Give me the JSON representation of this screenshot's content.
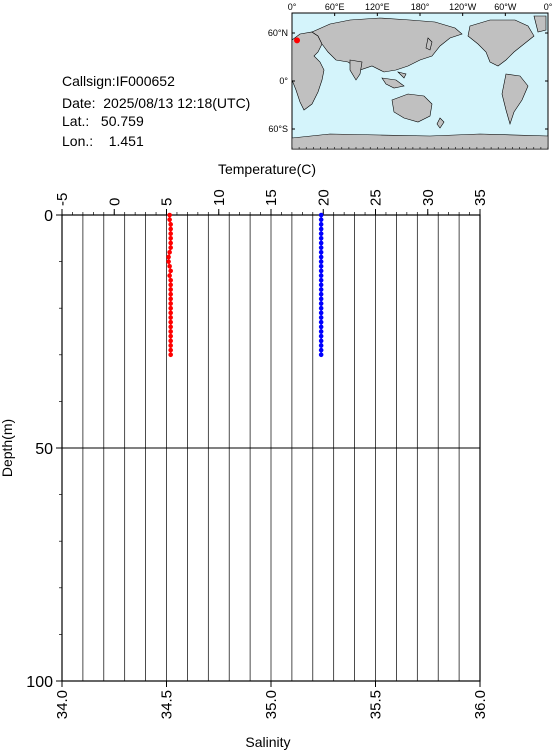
{
  "station": {
    "callsign_label": "Callsign:",
    "callsign": "IF000652",
    "date_label": "Date:",
    "date": "2025/08/13 12:18(UTC)",
    "lat_label": "Lat.:",
    "lat": "50.759",
    "lon_label": "Lon.:",
    "lon": "1.451"
  },
  "map": {
    "lon_ticks": [
      "0°",
      "60°E",
      "120°E",
      "180°",
      "120°W",
      "60°W",
      "0°"
    ],
    "lat_ticks": [
      "60°N",
      "0°",
      "60°S"
    ],
    "ocean_color": "#d4f4fb",
    "land_color": "#c0c0c0",
    "marker": {
      "lat": 50.759,
      "lon": 1.451,
      "color": "#ff0000"
    }
  },
  "chart_data": {
    "type": "scatter",
    "title": "",
    "ylabel": "Depth(m)",
    "ylim": [
      0,
      100
    ],
    "y_inverted": true,
    "y_ticks": [
      0,
      50,
      100
    ],
    "y_tick_labels": [
      "0",
      "50",
      "100"
    ],
    "top_axis": {
      "label": "Temperature(C)",
      "range": [
        -5,
        35
      ],
      "ticks": [
        -5,
        0,
        5,
        10,
        15,
        20,
        25,
        30,
        35
      ],
      "tick_labels": [
        "-5",
        "0",
        "5",
        "10",
        "15",
        "20",
        "25",
        "30",
        "35"
      ]
    },
    "bottom_axis": {
      "label": "Salinity",
      "range": [
        34.0,
        36.0
      ],
      "ticks": [
        34.0,
        34.5,
        35.0,
        35.5,
        36.0
      ],
      "tick_labels": [
        "34.0",
        "34.5",
        "35.0",
        "35.5",
        "36.0"
      ]
    },
    "grid": true,
    "series": [
      {
        "axis": "top",
        "color": "#ff0000",
        "x": [
          5.3,
          5.3,
          5.4,
          5.4,
          5.4,
          5.4,
          5.4,
          5.4,
          5.3,
          5.2,
          5.2,
          5.3,
          5.4,
          5.3,
          5.4,
          5.4,
          5.4,
          5.4,
          5.4,
          5.4,
          5.4,
          5.4,
          5.4,
          5.4,
          5.4,
          5.4,
          5.4,
          5.4,
          5.4,
          5.4,
          5.4
        ],
        "y": [
          0,
          1,
          2,
          3,
          4,
          5,
          6,
          7,
          8,
          9,
          10,
          11,
          12,
          13,
          14,
          15,
          16,
          17,
          18,
          19,
          20,
          21,
          22,
          23,
          24,
          25,
          26,
          27,
          28,
          29,
          30
        ]
      },
      {
        "axis": "bottom",
        "color": "#0000ff",
        "x": [
          35.24,
          35.24,
          35.24,
          35.24,
          35.24,
          35.24,
          35.24,
          35.24,
          35.24,
          35.24,
          35.24,
          35.24,
          35.24,
          35.24,
          35.24,
          35.24,
          35.24,
          35.24,
          35.24,
          35.24,
          35.24,
          35.24,
          35.24,
          35.24,
          35.24,
          35.24,
          35.24,
          35.24,
          35.24,
          35.24,
          35.24
        ],
        "y": [
          0,
          1,
          2,
          3,
          4,
          5,
          6,
          7,
          8,
          9,
          10,
          11,
          12,
          13,
          14,
          15,
          16,
          17,
          18,
          19,
          20,
          21,
          22,
          23,
          24,
          25,
          26,
          27,
          28,
          29,
          30
        ]
      }
    ]
  }
}
